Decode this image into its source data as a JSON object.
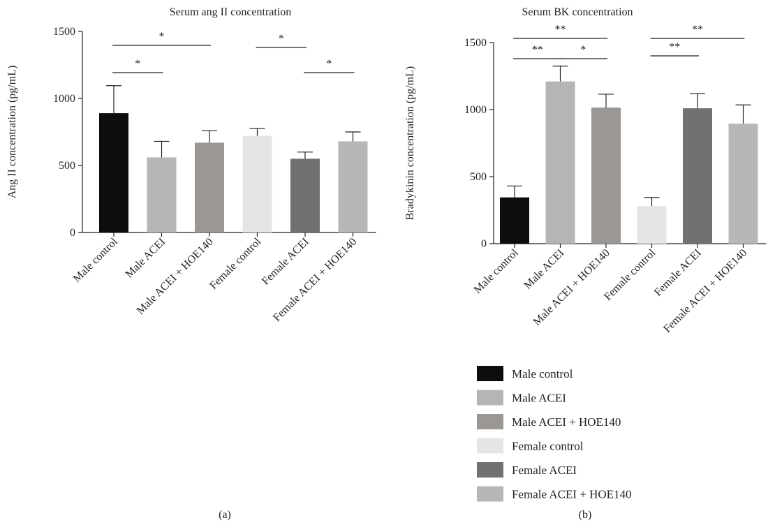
{
  "chart_data": [
    {
      "type": "bar",
      "title": "Serum ang II concentration",
      "ylabel": "Ang II concentration (pg/mL)",
      "ylim": [
        0,
        1500
      ],
      "yticks": [
        "0",
        "500",
        "1000",
        "1500"
      ],
      "grid": false,
      "categories": [
        "Male control",
        "Male ACEI",
        "Male ACEI + HOE140",
        "Female control",
        "Female ACEI",
        "Female ACEI + HOE140"
      ],
      "values": [
        890,
        560,
        670,
        720,
        550,
        680
      ],
      "errors": [
        205,
        120,
        90,
        55,
        50,
        70
      ],
      "significance": [
        {
          "from": 0,
          "to": 2,
          "label": "*"
        },
        {
          "from": 0,
          "to": 1,
          "label": "*"
        },
        {
          "from": 3,
          "to": 4,
          "label": "*"
        },
        {
          "from": 4,
          "to": 5,
          "label": "*"
        }
      ],
      "panel_label": "(a)"
    },
    {
      "type": "bar",
      "title": "Serum BK concentration",
      "ylabel": "Bradykinin concentration (pg/mL)",
      "ylim": [
        0,
        1500
      ],
      "yticks": [
        "0",
        "500",
        "1000",
        "1500"
      ],
      "grid": false,
      "categories": [
        "Male control",
        "Male ACEI",
        "Male ACEI + HOE140",
        "Female control",
        "Female ACEI",
        "Female ACEI + HOE140"
      ],
      "values": [
        345,
        1210,
        1015,
        280,
        1010,
        895
      ],
      "errors": [
        85,
        115,
        100,
        65,
        110,
        140
      ],
      "significance": [
        {
          "from": 0,
          "to": 2,
          "label": "**"
        },
        {
          "from": 0,
          "to": 1,
          "label": "**"
        },
        {
          "from": 1,
          "to": 2,
          "label": "*"
        },
        {
          "from": 3,
          "to": 5,
          "label": "**"
        },
        {
          "from": 3,
          "to": 4,
          "label": "**"
        }
      ],
      "panel_label": "(b)"
    }
  ],
  "legend": {
    "placement": "bottom-right",
    "items": [
      {
        "label": "Male control",
        "color": "#0d0d0d"
      },
      {
        "label": "Male ACEI",
        "color": "#b5b5b8"
      },
      {
        "label": "Male ACEI + HOE140",
        "color": "#9a9794"
      },
      {
        "label": "Female control",
        "color": "#e5e5e5"
      },
      {
        "label": "Female ACEI",
        "color": "#727070"
      },
      {
        "label": "Female ACEI + HOE140",
        "color": "#b7b7b9"
      }
    ]
  }
}
